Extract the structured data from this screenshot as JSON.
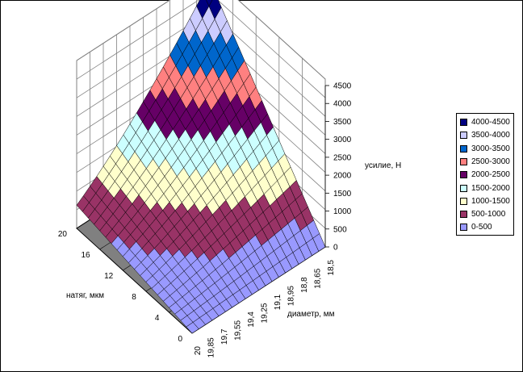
{
  "chart_data": {
    "type": "surface",
    "xlabel": "диаметр, мм",
    "ylabel": "натяг, мкм",
    "zlabel": "усилие, Н",
    "x_ticks": [
      "20",
      "19,85",
      "19,7",
      "19,55",
      "19,4",
      "19,25",
      "19,1",
      "18,95",
      "18,8",
      "18,65",
      "18,5"
    ],
    "y_ticks": [
      "0",
      "4",
      "8",
      "12",
      "16",
      "20"
    ],
    "z_ticks": [
      "0",
      "500",
      "1000",
      "1500",
      "2000",
      "2500",
      "3000",
      "3500",
      "4000",
      "4500"
    ],
    "zlim": [
      0,
      4500
    ],
    "legend": [
      {
        "label": "4000-4500",
        "color": "#000080"
      },
      {
        "label": "3500-4000",
        "color": "#ccccff"
      },
      {
        "label": "3000-3500",
        "color": "#0066cc"
      },
      {
        "label": "2500-3000",
        "color": "#ff8080"
      },
      {
        "label": "2000-2500",
        "color": "#660066"
      },
      {
        "label": "1500-2000",
        "color": "#ccffff"
      },
      {
        "label": "1000-1500",
        "color": "#ffffcc"
      },
      {
        "label": "500-1000",
        "color": "#993366"
      },
      {
        "label": "0-500",
        "color": "#9999ff"
      }
    ],
    "surface_rule": "force grows with натяг and with decreasing диаметр; max ≈ 4500 at натяг 20, диаметр 18,5; value 0 along натяг 0"
  }
}
